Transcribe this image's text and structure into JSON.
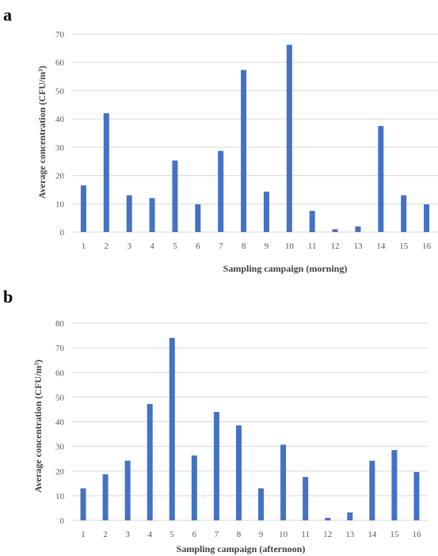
{
  "panels": [
    {
      "letter": "a",
      "chart_data": {
        "type": "bar",
        "categories": [
          "1",
          "2",
          "3",
          "4",
          "5",
          "6",
          "7",
          "8",
          "9",
          "10",
          "11",
          "12",
          "13",
          "14",
          "15",
          "16"
        ],
        "values": [
          16.5,
          42,
          13,
          12,
          25.3,
          9.8,
          28.7,
          57.3,
          14.3,
          66.2,
          7.5,
          1,
          2,
          37.5,
          13,
          9.8
        ],
        "xlabel": "Sampling campaign (morning)",
        "ylabel": "Average concentration (CFU/m³)",
        "ylim": [
          0,
          70
        ],
        "yticks": [
          0,
          10,
          20,
          30,
          40,
          50,
          60,
          70
        ],
        "grid": true,
        "color": "#4472c4"
      }
    },
    {
      "letter": "b",
      "chart_data": {
        "type": "bar",
        "categories": [
          "1",
          "2",
          "3",
          "4",
          "5",
          "6",
          "7",
          "8",
          "9",
          "10",
          "11",
          "12",
          "13",
          "14",
          "15",
          "16"
        ],
        "values": [
          13,
          18.7,
          24.2,
          47.2,
          74,
          26.3,
          44,
          38.5,
          13,
          30.7,
          17.6,
          1,
          3.2,
          24.2,
          28.5,
          19.6
        ],
        "xlabel": "Sampling campaign (afternoon)",
        "ylabel": "Average concentration (CFU/m³)",
        "ylim": [
          0,
          80
        ],
        "yticks": [
          0,
          10,
          20,
          30,
          40,
          50,
          60,
          70,
          80
        ],
        "grid": true,
        "color": "#4472c4"
      }
    }
  ]
}
